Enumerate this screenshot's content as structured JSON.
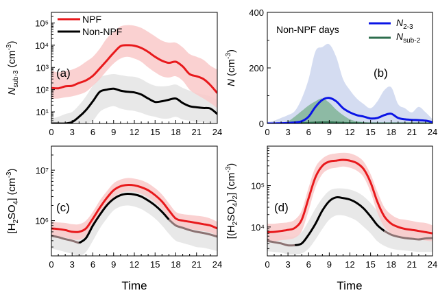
{
  "figure": {
    "xlabel": "Time",
    "xticks": [
      0,
      3,
      6,
      9,
      12,
      15,
      18,
      21,
      24
    ]
  },
  "chart_data": [
    {
      "panel": "(a)",
      "type": "line",
      "ylabel": "N_sub-3 (cm^-3)",
      "yscale": "log",
      "xlim": [
        0,
        24
      ],
      "ylim": [
        3,
        300000
      ],
      "yticks": [
        10,
        100,
        1000,
        10000,
        100000
      ],
      "ytick_labels": [
        "10^1",
        "10^2",
        "10^3",
        "10^4",
        "10^5"
      ],
      "legend": {
        "placement": "top-left",
        "entries": [
          "NPF",
          "Non-NPF"
        ]
      },
      "colors": {
        "NPF": "#e8191c",
        "Non-NPF": "#000000",
        "NPF_band": "#f9c9c9",
        "Non-NPF_band": "#e6e6e6"
      },
      "series": [
        {
          "name": "NPF",
          "x": [
            0,
            1,
            2,
            3,
            4,
            5,
            6,
            7,
            8,
            9,
            10,
            11,
            12,
            13,
            14,
            15,
            16,
            17,
            18,
            19,
            20,
            21,
            22,
            23,
            24
          ],
          "y": [
            120,
            115,
            140,
            150,
            200,
            260,
            420,
            900,
            2000,
            4500,
            9000,
            10000,
            9500,
            7500,
            5000,
            3000,
            2000,
            1600,
            1800,
            1100,
            500,
            400,
            300,
            160,
            70
          ],
          "lower": [
            40,
            40,
            45,
            50,
            60,
            80,
            150,
            300,
            700,
            1500,
            2500,
            3000,
            2500,
            1800,
            1000,
            600,
            400,
            350,
            400,
            250,
            100,
            60,
            40,
            25,
            15
          ],
          "upper": [
            700,
            600,
            700,
            800,
            1100,
            1800,
            3000,
            7000,
            20000,
            40000,
            70000,
            80000,
            75000,
            60000,
            40000,
            25000,
            16000,
            13000,
            13000,
            8000,
            4000,
            3000,
            2200,
            1200,
            800
          ]
        },
        {
          "name": "Non-NPF",
          "x": [
            0,
            1,
            2,
            3,
            4,
            5,
            6,
            7,
            8,
            9,
            10,
            11,
            12,
            13,
            14,
            15,
            16,
            17,
            18,
            19,
            20,
            21,
            22,
            23,
            24
          ],
          "y": [
            2.2,
            2.5,
            3,
            3.5,
            6,
            12,
            30,
            80,
            100,
            110,
            90,
            80,
            75,
            60,
            40,
            28,
            30,
            35,
            40,
            25,
            18,
            16,
            15,
            14,
            8
          ],
          "lower": [
            1,
            1,
            1,
            1,
            1.2,
            2,
            4,
            10,
            15,
            18,
            14,
            12,
            11,
            9,
            7,
            6,
            5,
            5,
            6,
            4.5,
            4,
            3.5,
            3.5,
            3,
            2.5
          ],
          "upper": [
            5,
            6,
            8,
            10,
            20,
            50,
            150,
            350,
            450,
            500,
            450,
            400,
            380,
            300,
            200,
            150,
            140,
            150,
            170,
            120,
            90,
            70,
            60,
            50,
            35
          ]
        }
      ]
    },
    {
      "panel": "(b)",
      "type": "line",
      "title": "Non-NPF days",
      "ylabel": "N (cm^-3)",
      "yscale": "linear",
      "xlim": [
        0,
        24
      ],
      "ylim": [
        0,
        400
      ],
      "yticks": [
        0,
        200,
        400
      ],
      "legend": {
        "placement": "top-right",
        "entries": [
          "N_2-3",
          "N_sub-2"
        ]
      },
      "colors": {
        "N_2-3": "#0a14e6",
        "N_sub-2": "#2e6e4e",
        "N_2-3_band": "#cdd6ee",
        "N_sub-2_band": "#80b496"
      },
      "series": [
        {
          "name": "N_2-3",
          "x": [
            0,
            1,
            2,
            3,
            4,
            5,
            6,
            7,
            8,
            9,
            10,
            11,
            12,
            13,
            14,
            15,
            16,
            17,
            18,
            19,
            20,
            21,
            22,
            23,
            24
          ],
          "y": [
            0,
            0,
            1,
            2,
            4,
            8,
            25,
            60,
            85,
            92,
            80,
            55,
            40,
            30,
            25,
            18,
            20,
            30,
            35,
            20,
            15,
            13,
            12,
            10,
            5
          ],
          "upper": [
            5,
            10,
            20,
            30,
            45,
            90,
            160,
            260,
            275,
            285,
            240,
            160,
            120,
            90,
            70,
            55,
            80,
            120,
            130,
            70,
            55,
            40,
            60,
            40,
            15
          ]
        },
        {
          "name": "N_sub-2",
          "x": [
            0,
            1,
            2,
            3,
            4,
            5,
            6,
            7,
            8,
            9,
            10,
            11,
            12,
            13,
            14,
            15,
            16,
            17,
            18,
            19,
            20,
            21,
            22,
            23,
            24
          ],
          "y": [
            0,
            0,
            0,
            0,
            0,
            1,
            2,
            3,
            4,
            4,
            3,
            2,
            1,
            1,
            0,
            0,
            0,
            0,
            0,
            0,
            0,
            0,
            0,
            0,
            0
          ],
          "upper": [
            0,
            1,
            3,
            8,
            25,
            45,
            65,
            80,
            90,
            75,
            50,
            30,
            15,
            8,
            5,
            3,
            2,
            2,
            2,
            1,
            1,
            1,
            0,
            0,
            0
          ]
        }
      ]
    },
    {
      "panel": "(c)",
      "type": "line",
      "ylabel": "[H2SO4] (cm^-3)",
      "yscale": "log",
      "xlim": [
        0,
        24
      ],
      "ylim": [
        200000,
        30000000
      ],
      "yticks": [
        1000000,
        10000000
      ],
      "ytick_labels": [
        "10^6",
        "10^7"
      ],
      "colors": {
        "NPF": "#e8191c",
        "Non-NPF": "#000000",
        "Non-NPF-night": "#8c7373"
      },
      "series": [
        {
          "name": "NPF",
          "x": [
            0,
            1,
            2,
            3,
            4,
            5,
            6,
            7,
            8,
            9,
            10,
            11,
            12,
            13,
            14,
            15,
            16,
            17,
            18,
            19,
            20,
            21,
            22,
            23,
            24
          ],
          "y": [
            700000,
            680000,
            650000,
            600000,
            600000,
            700000,
            1100000,
            1800000,
            2800000,
            4000000,
            4800000,
            5100000,
            5000000,
            4600000,
            4000000,
            3200000,
            2400000,
            1600000,
            1100000,
            1000000,
            950000,
            900000,
            850000,
            800000,
            700000
          ],
          "lower": [
            500000,
            480000,
            460000,
            430000,
            420000,
            500000,
            800000,
            1300000,
            2000000,
            2900000,
            3500000,
            3800000,
            3700000,
            3400000,
            2900000,
            2300000,
            1700000,
            1100000,
            800000,
            730000,
            690000,
            650000,
            620000,
            580000,
            500000
          ],
          "upper": [
            950000,
            920000,
            900000,
            850000,
            850000,
            1000000,
            1500000,
            2500000,
            3800000,
            5500000,
            6500000,
            7000000,
            6800000,
            6300000,
            5500000,
            4400000,
            3300000,
            2200000,
            1500000,
            1350000,
            1300000,
            1250000,
            1200000,
            1100000,
            950000
          ]
        },
        {
          "name": "Non-NPF",
          "x": [
            0,
            1,
            2,
            3,
            4,
            5,
            6,
            7,
            8,
            9,
            10,
            11,
            12,
            13,
            14,
            15,
            16,
            17,
            18,
            19,
            20,
            21,
            22,
            23,
            24
          ],
          "y": [
            500000,
            470000,
            430000,
            400000,
            360000,
            450000,
            800000,
            1300000,
            2000000,
            2700000,
            3200000,
            3400000,
            3300000,
            3000000,
            2500000,
            2000000,
            1500000,
            1050000,
            800000,
            720000,
            650000,
            600000,
            570000,
            530000,
            480000
          ],
          "lower": [
            280000,
            260000,
            240000,
            220000,
            200000,
            240000,
            400000,
            700000,
            1100000,
            1600000,
            1900000,
            2000000,
            1900000,
            1700000,
            1400000,
            1100000,
            800000,
            550000,
            400000,
            360000,
            330000,
            300000,
            290000,
            270000,
            250000
          ],
          "upper": [
            700000,
            660000,
            620000,
            580000,
            560000,
            700000,
            1200000,
            2000000,
            3000000,
            4000000,
            4600000,
            4800000,
            4700000,
            4300000,
            3700000,
            3000000,
            2300000,
            1600000,
            1200000,
            1050000,
            950000,
            880000,
            820000,
            760000,
            700000
          ]
        }
      ]
    },
    {
      "panel": "(d)",
      "type": "line",
      "ylabel": "[(H2SO4)2] (cm^-3)",
      "yscale": "log",
      "xlim": [
        0,
        24
      ],
      "ylim": [
        2000,
        900000
      ],
      "yticks": [
        10000,
        100000
      ],
      "ytick_labels": [
        "10^4",
        "10^5"
      ],
      "colors": {
        "NPF": "#e8191c",
        "Non-NPF": "#000000",
        "Non-NPF-night": "#8c7373"
      },
      "series": [
        {
          "name": "NPF",
          "x": [
            0,
            1,
            2,
            3,
            4,
            5,
            6,
            7,
            8,
            9,
            10,
            11,
            12,
            13,
            14,
            15,
            16,
            17,
            18,
            19,
            20,
            21,
            22,
            23,
            24
          ],
          "y": [
            7500,
            7600,
            8000,
            8500,
            9500,
            15000,
            50000,
            160000,
            300000,
            380000,
            400000,
            420000,
            400000,
            350000,
            250000,
            120000,
            40000,
            18000,
            12000,
            10000,
            9000,
            8500,
            8000,
            7500,
            7000
          ],
          "lower": [
            4500,
            4500,
            4800,
            5000,
            5500,
            8000,
            25000,
            90000,
            190000,
            250000,
            270000,
            290000,
            270000,
            230000,
            160000,
            70000,
            22000,
            10000,
            7000,
            6000,
            5500,
            5200,
            5000,
            4700,
            4500
          ],
          "upper": [
            12000,
            12000,
            12500,
            13000,
            15000,
            25000,
            90000,
            280000,
            450000,
            560000,
            600000,
            620000,
            600000,
            520000,
            380000,
            190000,
            70000,
            30000,
            20000,
            16000,
            15000,
            14000,
            13000,
            12500,
            11000
          ]
        },
        {
          "name": "Non-NPF",
          "x": [
            0,
            1,
            2,
            3,
            4,
            5,
            6,
            7,
            8,
            9,
            10,
            11,
            12,
            13,
            14,
            15,
            16,
            17,
            18,
            19,
            20,
            21,
            22,
            23,
            24
          ],
          "y": [
            4600,
            4300,
            4000,
            3600,
            3600,
            4000,
            6500,
            12000,
            25000,
            42000,
            52000,
            50000,
            46000,
            38000,
            28000,
            18000,
            11000,
            8000,
            6500,
            5800,
            5400,
            5200,
            5000,
            5300,
            5400
          ],
          "lower": [
            2600,
            2500,
            2400,
            2200,
            2200,
            2300,
            3000,
            5000,
            9000,
            15000,
            19000,
            19000,
            17000,
            14000,
            10000,
            7000,
            4500,
            3500,
            3000,
            2800,
            2700,
            2600,
            2500,
            2500,
            2500
          ],
          "upper": [
            7500,
            7000,
            6500,
            6000,
            6000,
            7500,
            14000,
            28000,
            50000,
            75000,
            85000,
            85000,
            80000,
            70000,
            55000,
            38000,
            24000,
            15000,
            11000,
            9500,
            8800,
            8500,
            8200,
            8000,
            7800
          ]
        }
      ]
    }
  ]
}
